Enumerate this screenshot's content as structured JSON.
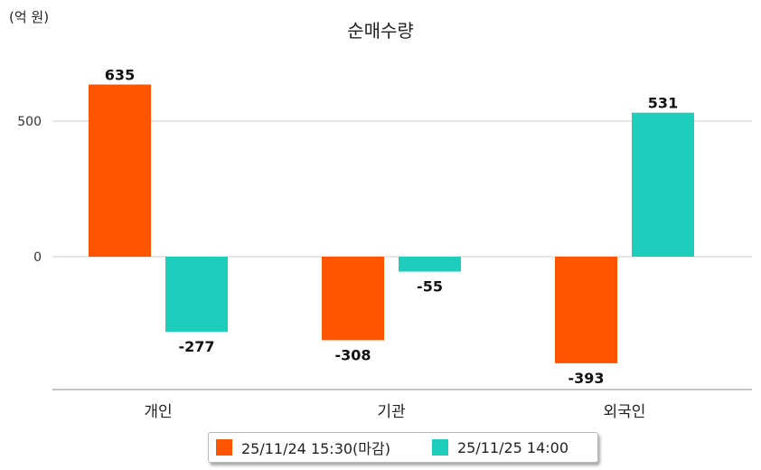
{
  "chart_data": {
    "type": "bar",
    "title": "순매수량",
    "unit_label": "(억 원)",
    "categories": [
      "개인",
      "기관",
      "외국인"
    ],
    "series": [
      {
        "name": "25/11/24 15:30(마감)",
        "color": "#FF5500",
        "values": [
          635,
          -308,
          -393
        ]
      },
      {
        "name": "25/11/25 14:00",
        "color": "#1ECDBC",
        "values": [
          -277,
          -55,
          531
        ]
      }
    ],
    "y_ticks": [
      0,
      500
    ],
    "ylim": [
      -480,
      700
    ],
    "grid": true,
    "legend_position": "bottom"
  }
}
